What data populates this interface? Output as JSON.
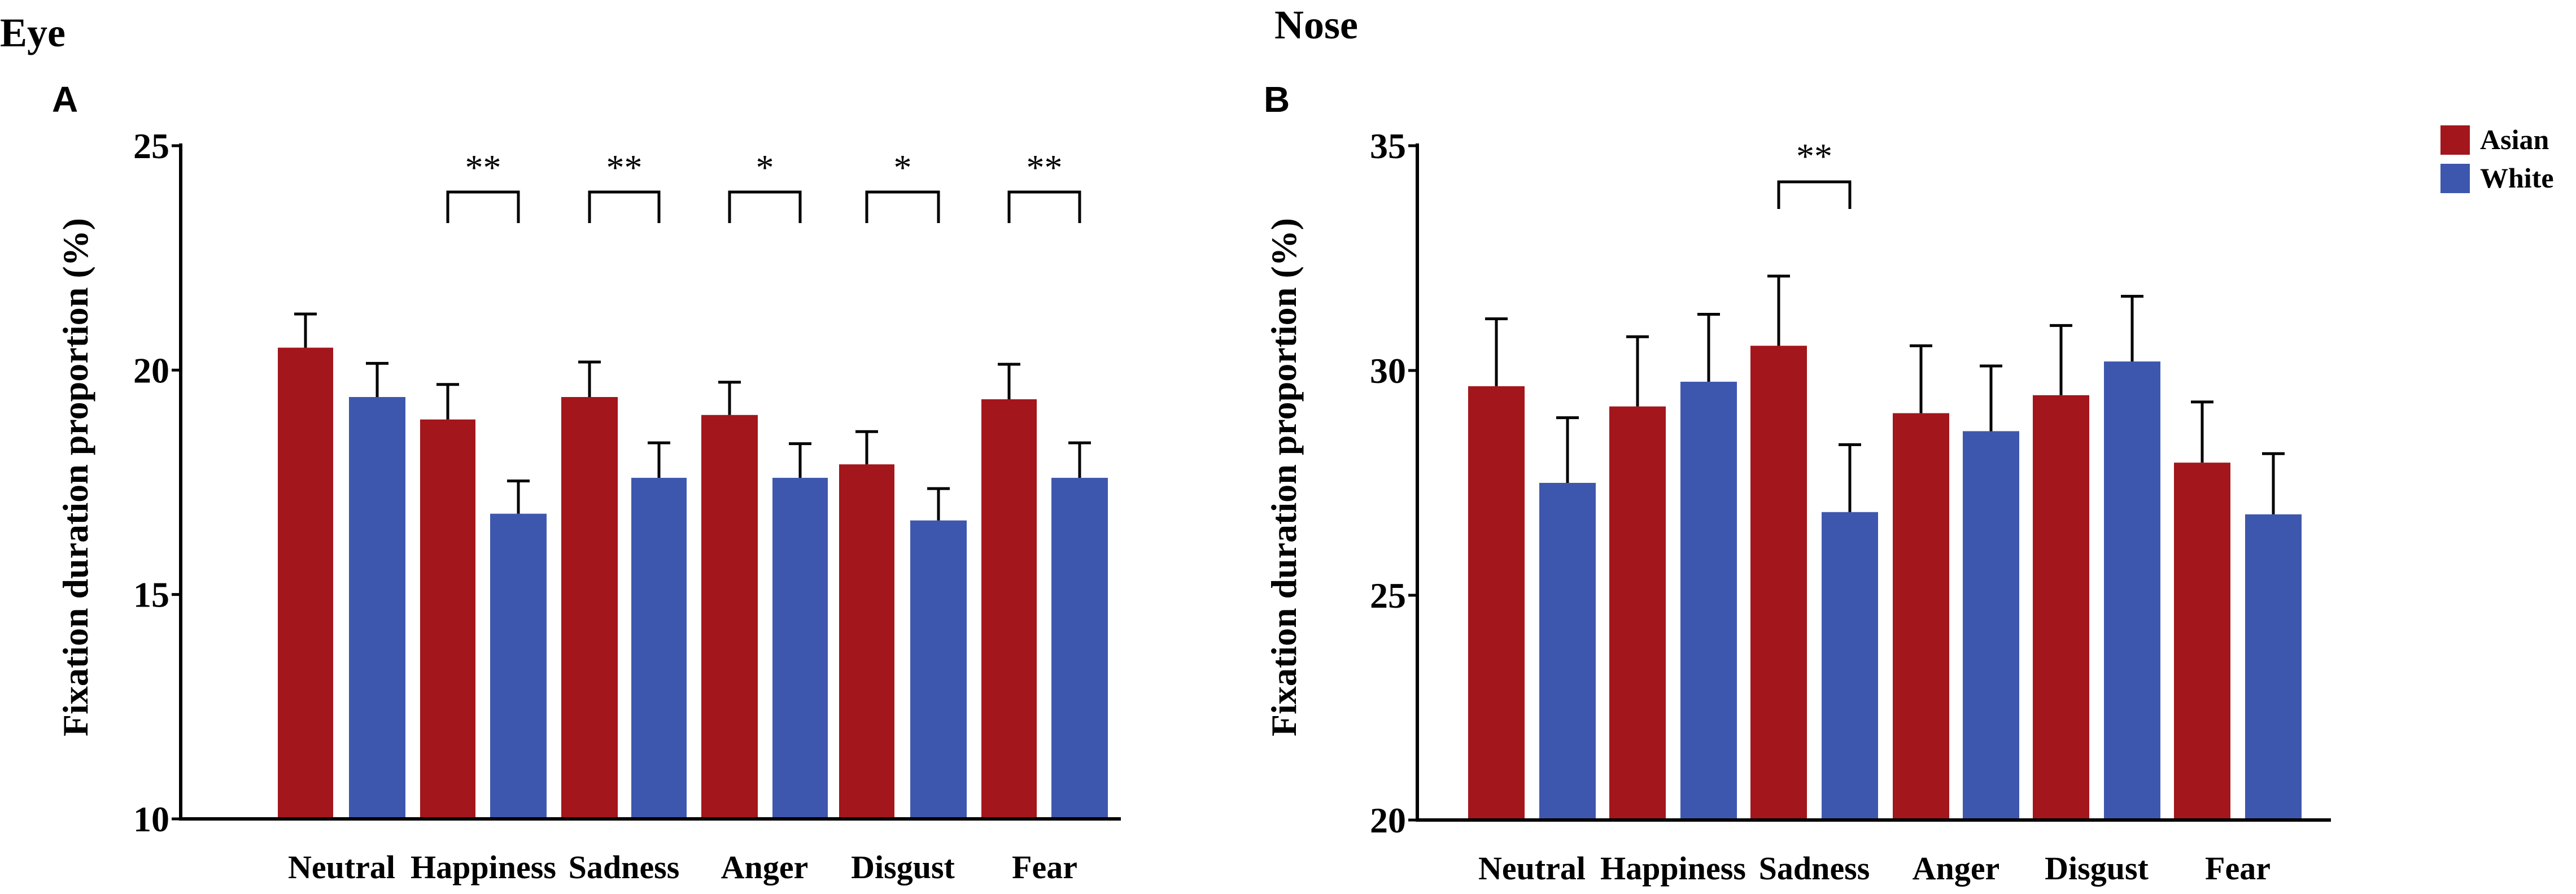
{
  "figure": {
    "legend": {
      "entries": [
        {
          "label": "Asian",
          "color": "#a3161c"
        },
        {
          "label": "White",
          "color": "#3e57ae"
        }
      ],
      "placement": "top-right"
    }
  },
  "chart_data": [
    {
      "type": "bar",
      "region_title": "Eye",
      "panel_letter": "A",
      "ylabel": "Fixation duration proportion (%)",
      "xlabel": "",
      "ylim": [
        10,
        25
      ],
      "yticks": [
        10,
        15,
        20,
        25
      ],
      "grid": false,
      "categories": [
        "Neutral",
        "Happiness",
        "Sadness",
        "Anger",
        "Disgust",
        "Fear"
      ],
      "series": [
        {
          "name": "Asian",
          "color": "#a3161c",
          "values": [
            20.5,
            18.9,
            19.4,
            19.0,
            17.9,
            19.35
          ],
          "errors": [
            0.75,
            0.78,
            0.78,
            0.73,
            0.73,
            0.78
          ]
        },
        {
          "name": "White",
          "color": "#3e57ae",
          "values": [
            19.4,
            16.8,
            17.6,
            17.6,
            16.65,
            17.6
          ],
          "errors": [
            0.75,
            0.73,
            0.78,
            0.76,
            0.71,
            0.78
          ]
        }
      ],
      "significance": [
        "",
        "**",
        "**",
        "*",
        "*",
        "**"
      ]
    },
    {
      "type": "bar",
      "region_title": "Nose",
      "panel_letter": "B",
      "ylabel": "Fixation duration proportion (%)",
      "xlabel": "",
      "ylim": [
        20,
        35
      ],
      "yticks": [
        20,
        25,
        30,
        35
      ],
      "grid": false,
      "categories": [
        "Neutral",
        "Happiness",
        "Sadness",
        "Anger",
        "Disgust",
        "Fear"
      ],
      "series": [
        {
          "name": "Asian",
          "color": "#a3161c",
          "values": [
            29.65,
            29.2,
            30.55,
            29.05,
            29.45,
            27.95
          ],
          "errors": [
            1.5,
            1.55,
            1.55,
            1.5,
            1.55,
            1.35
          ]
        },
        {
          "name": "White",
          "color": "#3e57ae",
          "values": [
            27.5,
            29.75,
            26.85,
            28.65,
            30.2,
            26.8
          ],
          "errors": [
            1.45,
            1.5,
            1.5,
            1.45,
            1.45,
            1.35
          ]
        }
      ],
      "significance": [
        "",
        "",
        "**",
        "",
        "",
        ""
      ]
    }
  ]
}
